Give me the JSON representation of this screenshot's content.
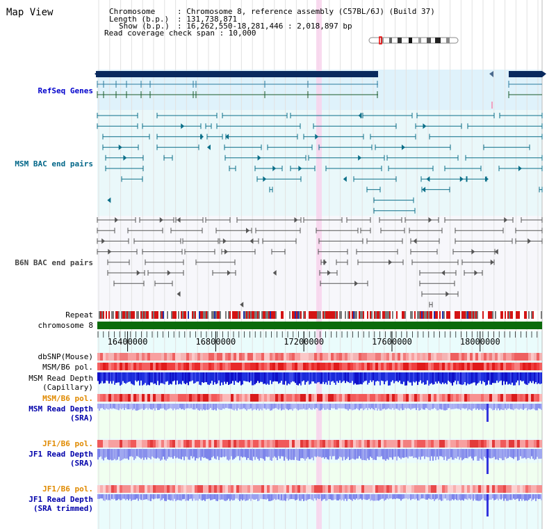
{
  "title": "Map View",
  "info": {
    "chromosome_key": "Chromosome",
    "chromosome_val": ": Chromosome 8, reference assembly (C57BL/6J) (Build 37)",
    "length_key": "Length (b.p.)",
    "length_val": ": 131,738,871",
    "show_key": "Show (b.p.)",
    "show_val": ": 16,262,550-18,281,446 : 2,018,897 bp",
    "coverage": "Read coverage check span : 10,000"
  },
  "axis": {
    "start": 16262550,
    "end": 18281446,
    "ticks": [
      "16400000",
      "16800000",
      "17200000",
      "17600000",
      "18000000"
    ]
  },
  "tracks": {
    "refseq": {
      "label": "RefSeq Genes",
      "color": "#0000cc"
    },
    "msm_bac": {
      "label": "MSM BAC end pairs",
      "color": "#006688"
    },
    "b6n_bac": {
      "label": "B6N BAC end pairs",
      "color": "#444444"
    },
    "repeat": {
      "label": "Repeat",
      "color": "#000000"
    },
    "chromosome": {
      "label": "chromosome 8",
      "color": "#000000"
    },
    "dbsnp": {
      "label": "dbSNP(Mouse)",
      "color": "#000000"
    },
    "msm_b6_pol_1": {
      "label": "MSM/B6 pol.",
      "color": "#000000"
    },
    "msm_read_cap": {
      "label1": "MSM Read Depth",
      "label2": "(Capillary)",
      "color": "#000000"
    },
    "msm_b6_pol_2": {
      "label": "MSM/B6 pol.",
      "color": "#e08a00"
    },
    "msm_read_sra": {
      "label1": "MSM Read Depth",
      "label2": "(SRA)",
      "color": "#0000aa"
    },
    "jf1_b6_pol_1": {
      "label": "JF1/B6 pol.",
      "color": "#e08a00"
    },
    "jf1_read_sra": {
      "label1": "JF1 Read Depth",
      "label2": "(SRA)",
      "color": "#0000aa"
    },
    "jf1_b6_pol_2": {
      "label": "JF1/B6 pol.",
      "color": "#e08a00"
    },
    "jf1_read_trim": {
      "label1": "JF1 Read Depth",
      "label2": "(SRA trimmed)",
      "color": "#0000aa"
    }
  }
}
